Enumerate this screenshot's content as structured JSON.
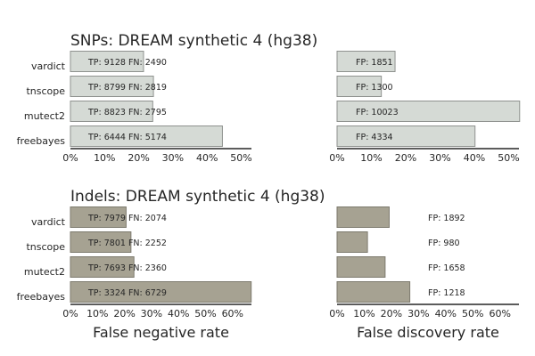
{
  "chart_data": [
    {
      "type": "bar",
      "orientation": "horizontal",
      "title": "SNPs: DREAM synthetic 4 (hg38)",
      "xlabel": "",
      "categories": [
        "vardict",
        "tnscope",
        "mutect2",
        "freebayes"
      ],
      "values": [
        0.214,
        0.243,
        0.241,
        0.445
      ],
      "annotations": [
        "TP: 9128 FN: 2490",
        "TP: 8799 FN: 2819",
        "TP: 8823 FN: 2795",
        "TP: 6444 FN: 5174"
      ],
      "xlim": [
        0,
        0.53
      ],
      "xticks": [
        "0%",
        "10%",
        "20%",
        "30%",
        "40%",
        "50%"
      ],
      "color": "#d5dad5",
      "edge": "#8f928f"
    },
    {
      "type": "bar",
      "orientation": "horizontal",
      "title": "",
      "xlabel": "",
      "categories": [
        "vardict",
        "tnscope",
        "mutect2",
        "freebayes"
      ],
      "values": [
        0.169,
        0.129,
        0.532,
        0.402
      ],
      "annotations": [
        "FP: 1851",
        "FP: 1300",
        "FP: 10023",
        "FP: 4334"
      ],
      "xlim": [
        0,
        0.53
      ],
      "xticks": [
        "0%",
        "10%",
        "20%",
        "30%",
        "40%",
        "50%"
      ],
      "color": "#d5dad5",
      "edge": "#8f928f"
    },
    {
      "type": "bar",
      "orientation": "horizontal",
      "title": "Indels: DREAM synthetic 4 (hg38)",
      "xlabel": "False negative rate",
      "categories": [
        "vardict",
        "tnscope",
        "mutect2",
        "freebayes"
      ],
      "values": [
        0.206,
        0.224,
        0.235,
        0.669
      ],
      "annotations": [
        "TP: 7979 FN: 2074",
        "TP: 7801 FN: 2252",
        "TP: 7693 FN: 2360",
        "TP: 3324 FN: 6729"
      ],
      "xlim": [
        0,
        0.67
      ],
      "xticks": [
        "0%",
        "10%",
        "20%",
        "30%",
        "40%",
        "50%",
        "60%"
      ],
      "color": "#a6a292",
      "edge": "#7d7a6e"
    },
    {
      "type": "bar",
      "orientation": "horizontal",
      "title": "",
      "xlabel": "False discovery rate",
      "categories": [
        "vardict",
        "tnscope",
        "mutect2",
        "freebayes"
      ],
      "values": [
        0.192,
        0.112,
        0.177,
        0.268
      ],
      "annotations": [
        "FP: 1892",
        "FP: 980",
        "FP: 1658",
        "FP: 1218"
      ],
      "xlim": [
        0,
        0.67
      ],
      "xticks": [
        "0%",
        "10%",
        "20%",
        "30%",
        "40%",
        "50%",
        "60%"
      ],
      "color": "#a6a292",
      "edge": "#7d7a6e"
    }
  ]
}
